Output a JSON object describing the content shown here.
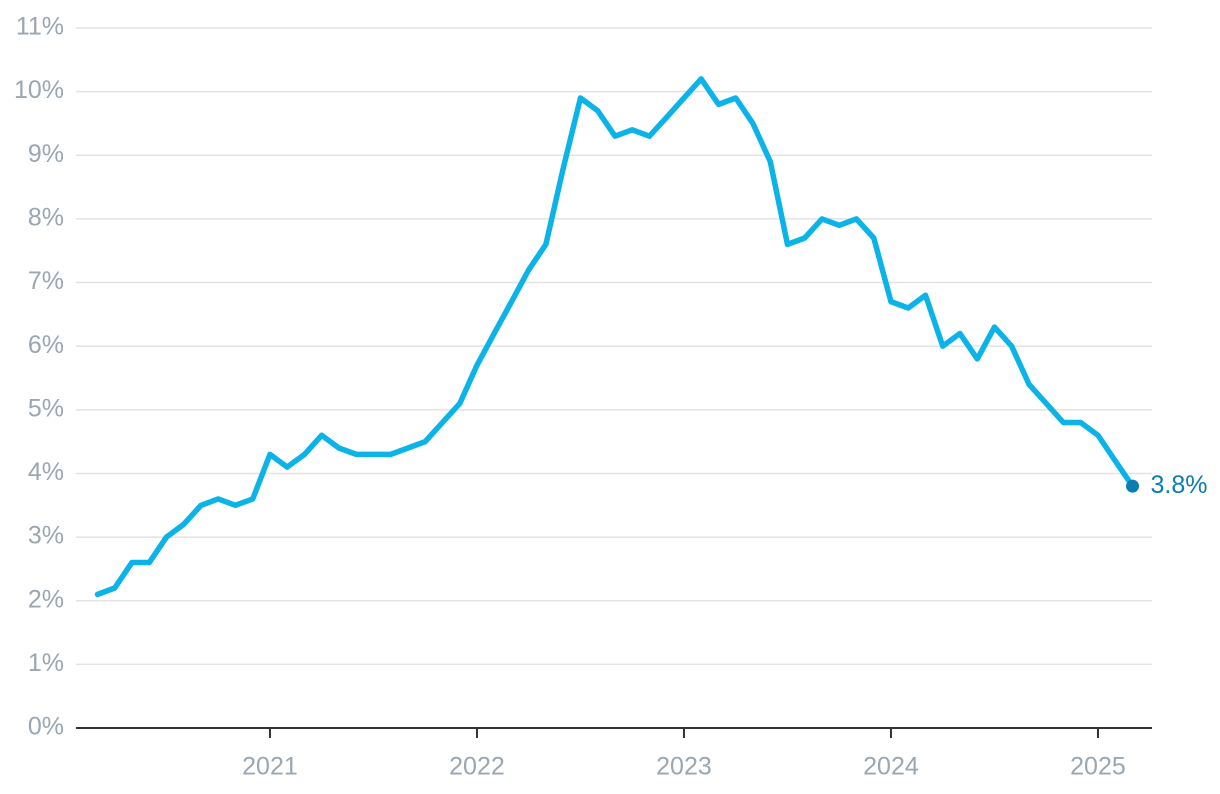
{
  "chart_data": {
    "type": "line",
    "x": [
      2020.167,
      2020.25,
      2020.333,
      2020.417,
      2020.5,
      2020.583,
      2020.667,
      2020.75,
      2020.833,
      2020.917,
      2021,
      2021.083,
      2021.167,
      2021.25,
      2021.333,
      2021.417,
      2021.5,
      2021.583,
      2021.667,
      2021.75,
      2021.833,
      2021.917,
      2022,
      2022.083,
      2022.167,
      2022.25,
      2022.333,
      2022.417,
      2022.5,
      2022.583,
      2022.667,
      2022.75,
      2022.833,
      2022.917,
      2023,
      2023.083,
      2023.167,
      2023.25,
      2023.333,
      2023.417,
      2023.5,
      2023.583,
      2023.667,
      2023.75,
      2023.833,
      2023.917,
      2024,
      2024.083,
      2024.167,
      2024.25,
      2024.333,
      2024.417,
      2024.5,
      2024.583,
      2024.667,
      2024.75,
      2024.833,
      2024.917,
      2025,
      2025.083,
      2025.167
    ],
    "series": [
      {
        "color": "#0bb3e8",
        "label_color": "#0a7db3",
        "values": [
          2.1,
          2.2,
          2.6,
          2.6,
          3.0,
          3.2,
          3.5,
          3.6,
          3.5,
          3.6,
          4.3,
          4.1,
          4.3,
          4.6,
          4.4,
          4.3,
          4.3,
          4.3,
          4.4,
          4.5,
          4.8,
          5.1,
          5.7,
          6.2,
          6.7,
          7.2,
          7.6,
          8.8,
          9.9,
          9.7,
          9.3,
          9.4,
          9.3,
          9.6,
          9.9,
          10.2,
          9.8,
          9.9,
          9.5,
          8.9,
          7.6,
          7.7,
          8.0,
          7.9,
          8.0,
          7.7,
          6.7,
          6.6,
          6.8,
          6.0,
          6.2,
          5.8,
          6.3,
          6.0,
          5.4,
          5.1,
          4.8,
          4.8,
          4.6,
          4.2,
          3.8
        ],
        "value_labels": [
          null,
          null,
          null,
          null,
          null,
          null,
          null,
          null,
          null,
          null,
          null,
          null,
          null,
          null,
          null,
          null,
          null,
          null,
          null,
          null,
          null,
          null,
          null,
          null,
          null,
          null,
          null,
          null,
          null,
          null,
          null,
          null,
          null,
          null,
          null,
          null,
          null,
          null,
          null,
          null,
          null,
          null,
          null,
          null,
          null,
          null,
          null,
          null,
          null,
          null,
          null,
          null,
          null,
          null,
          null,
          null,
          null,
          null,
          null,
          null,
          "3.8%"
        ]
      }
    ],
    "xlim": [
      2020.063,
      2025.261
    ],
    "xticks": [
      2021,
      2022,
      2023,
      2024,
      2025
    ],
    "ylim": [
      0,
      11
    ],
    "yticks": [
      {
        "value": 0,
        "label": "0%"
      },
      {
        "value": 1,
        "label": "1%"
      },
      {
        "value": 2,
        "label": "2%"
      },
      {
        "value": 3,
        "label": "3%"
      },
      {
        "value": 4,
        "label": "4%"
      },
      {
        "value": 5,
        "label": "5%"
      },
      {
        "value": 6,
        "label": "6%"
      },
      {
        "value": 7,
        "label": "7%"
      },
      {
        "value": 8,
        "label": "8%"
      },
      {
        "value": 9,
        "label": "9%"
      },
      {
        "value": 10,
        "label": "10%"
      },
      {
        "value": 11,
        "label": "11%"
      }
    ],
    "grid": true
  }
}
